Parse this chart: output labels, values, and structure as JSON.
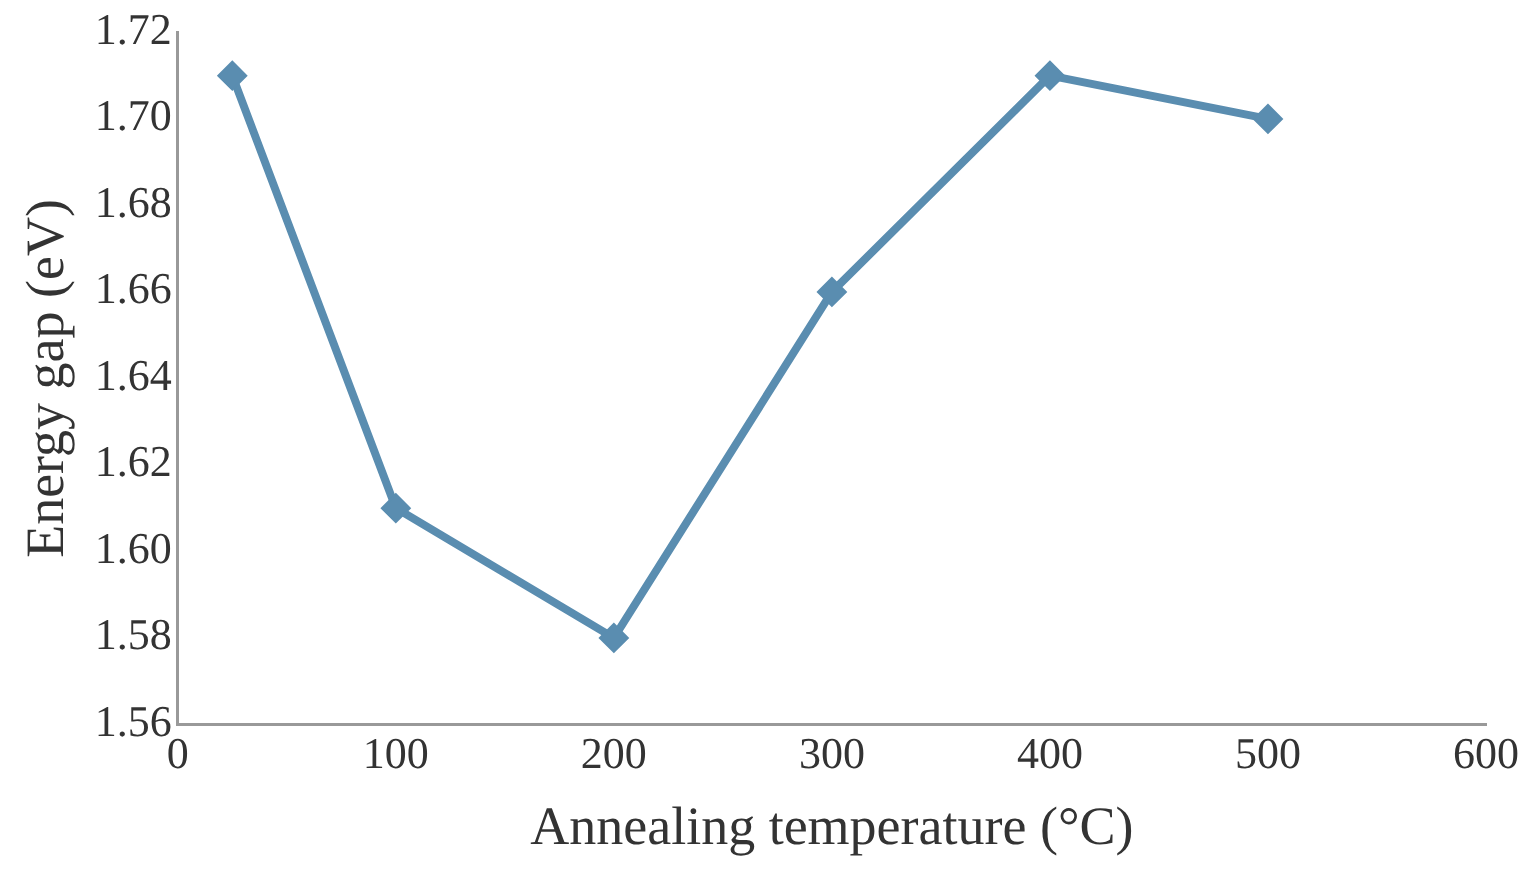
{
  "chart_data": {
    "type": "line",
    "xlabel": "Annealing temperature (°C)",
    "ylabel": "Energy gap (eV)",
    "x": [
      25,
      100,
      200,
      300,
      400,
      500
    ],
    "series": [
      {
        "color": "#5a8db0",
        "values": [
          1.71,
          1.61,
          1.58,
          1.66,
          1.71,
          1.7
        ]
      }
    ],
    "xlim": [
      0,
      600
    ],
    "xticks": [
      0,
      100,
      200,
      300,
      400,
      500,
      600
    ],
    "ylim": [
      1.56,
      1.72
    ],
    "yticks": [
      {
        "value": 1.56,
        "label": "1.56"
      },
      {
        "value": 1.58,
        "label": "1.58"
      },
      {
        "value": 1.6,
        "label": "1.60"
      },
      {
        "value": 1.62,
        "label": "1.62"
      },
      {
        "value": 1.64,
        "label": "1.64"
      },
      {
        "value": 1.66,
        "label": "1.66"
      },
      {
        "value": 1.68,
        "label": "1.68"
      },
      {
        "value": 1.7,
        "label": "1.70"
      },
      {
        "value": 1.72,
        "label": "1.72"
      }
    ],
    "grid": false,
    "legend": false,
    "marker": "diamond",
    "line_style": "solid"
  }
}
